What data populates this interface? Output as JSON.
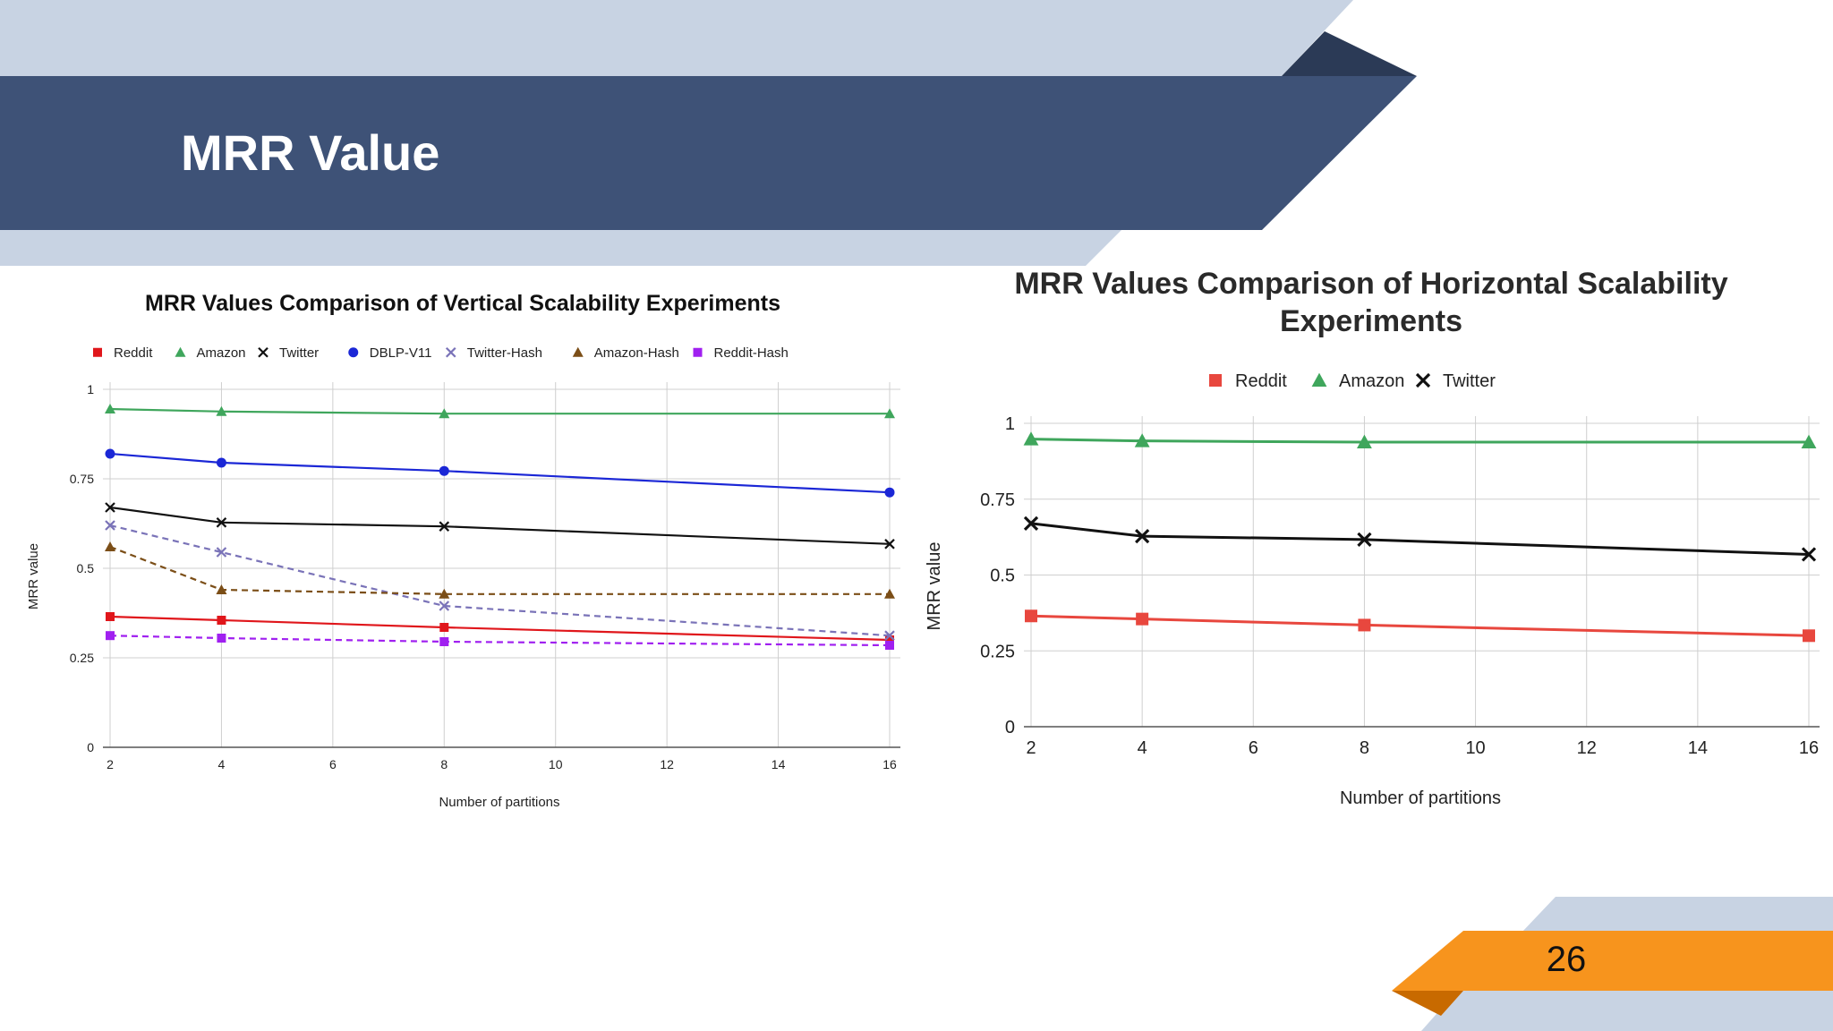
{
  "slide": {
    "title": "MRR Value",
    "page_number": "26",
    "colors": {
      "banner": "#3e5277",
      "banner_dark": "#2b3a56",
      "light_band": "#c8d3e3",
      "accent": "#f7941d",
      "accent_dark": "#c86a00"
    }
  },
  "chart_data": [
    {
      "type": "line",
      "title": "MRR Values Comparison of Vertical Scalability Experiments",
      "xlabel": "Number of partitions",
      "ylabel": "MRR value",
      "x": [
        2,
        4,
        8,
        16
      ],
      "xticks": [
        "2",
        "4",
        "6",
        "8",
        "10",
        "12",
        "14",
        "16"
      ],
      "xlim": [
        2,
        16
      ],
      "yticks": [
        "0",
        "0.25",
        "0.5",
        "0.75",
        "1"
      ],
      "ylim": [
        0,
        1
      ],
      "grid": true,
      "legend": "top",
      "series": [
        {
          "name": "Reddit",
          "values": [
            0.365,
            0.355,
            0.335,
            0.3
          ],
          "color": "#e0161b",
          "marker": "square",
          "dash": false
        },
        {
          "name": "Amazon",
          "values": [
            0.945,
            0.938,
            0.932,
            0.932
          ],
          "color": "#3fa65c",
          "marker": "triangle",
          "dash": false
        },
        {
          "name": "Twitter",
          "values": [
            0.67,
            0.628,
            0.617,
            0.568
          ],
          "color": "#111111",
          "marker": "x",
          "dash": false
        },
        {
          "name": "DBLP-V11",
          "values": [
            0.82,
            0.795,
            0.772,
            0.712
          ],
          "color": "#1b27d6",
          "marker": "circle",
          "dash": false
        },
        {
          "name": "Twitter-Hash",
          "values": [
            0.62,
            0.545,
            0.395,
            0.312
          ],
          "color": "#7a73b8",
          "marker": "x",
          "dash": true
        },
        {
          "name": "Amazon-Hash",
          "values": [
            0.56,
            0.44,
            0.428,
            0.428
          ],
          "color": "#7b4e17",
          "marker": "triangle",
          "dash": true
        },
        {
          "name": "Reddit-Hash",
          "values": [
            0.312,
            0.305,
            0.295,
            0.285
          ],
          "color": "#a020f0",
          "marker": "square",
          "dash": true
        }
      ]
    },
    {
      "type": "line",
      "title": "MRR Values Comparison of Horizontal Scalability Experiments",
      "title_lines": [
        "MRR Values Comparison of Horizontal Scalability",
        "Experiments"
      ],
      "xlabel": "Number of partitions",
      "ylabel": "MRR value",
      "x": [
        2,
        4,
        8,
        16
      ],
      "xticks": [
        "2",
        "4",
        "6",
        "8",
        "10",
        "12",
        "14",
        "16"
      ],
      "xlim": [
        2,
        16
      ],
      "yticks": [
        "0",
        "0.25",
        "0.5",
        "0.75",
        "1"
      ],
      "ylim": [
        0,
        1
      ],
      "grid": true,
      "legend": "top",
      "series": [
        {
          "name": "Reddit",
          "values": [
            0.365,
            0.355,
            0.335,
            0.3
          ],
          "color": "#e8473e",
          "marker": "square",
          "dash": false
        },
        {
          "name": "Amazon",
          "values": [
            0.948,
            0.942,
            0.938,
            0.938
          ],
          "color": "#3fa65c",
          "marker": "triangle",
          "dash": false
        },
        {
          "name": "Twitter",
          "values": [
            0.67,
            0.628,
            0.617,
            0.568
          ],
          "color": "#111111",
          "marker": "x",
          "dash": false
        }
      ]
    }
  ]
}
